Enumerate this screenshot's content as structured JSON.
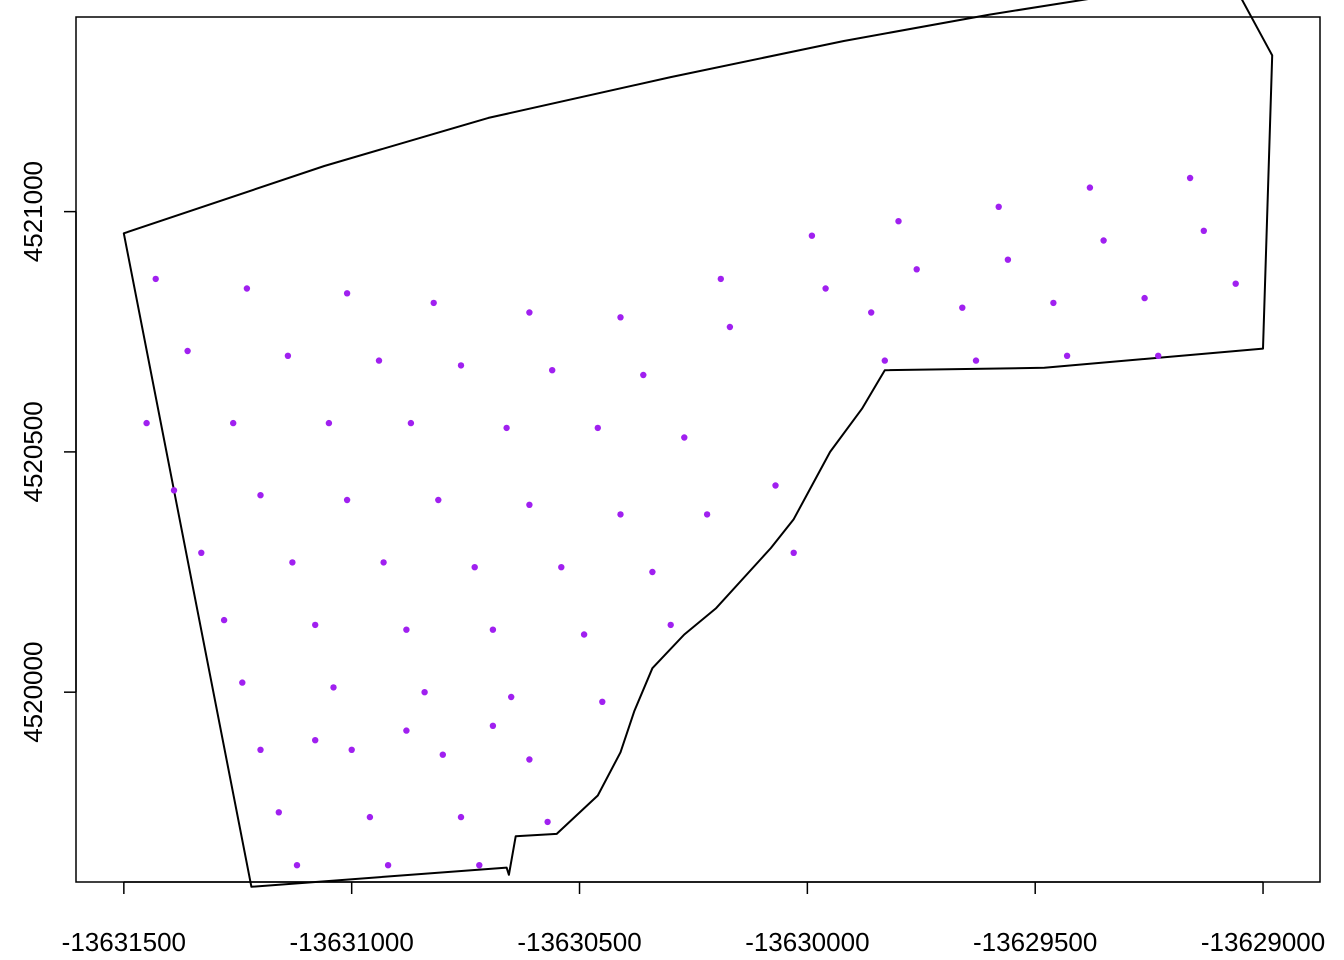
{
  "chart_data": {
    "type": "scatter",
    "title": "",
    "xlabel": "",
    "ylabel": "",
    "xlim": [
      -13631605,
      -13628875
    ],
    "ylim": [
      4519605,
      4521405
    ],
    "grid": false,
    "x_ticks": [
      -13631500,
      -13631000,
      -13630500,
      -13630000,
      -13629500,
      -13629000
    ],
    "x_tick_labels": [
      "-13631500",
      "-13631000",
      "-13630500",
      "-13630000",
      "-13629500",
      "-13629000"
    ],
    "y_ticks": [
      4520000,
      4520500,
      4521000
    ],
    "y_tick_labels": [
      "4520000",
      "4520500",
      "4521000"
    ],
    "boundary": {
      "name": "",
      "color": "#000000",
      "x": [
        -13631500,
        -13631060,
        -13630700,
        -13630300,
        -13629920,
        -13629600,
        -13629300,
        -13629080,
        -13628980,
        -13629000,
        -13629480,
        -13629830,
        -13629880,
        -13629950,
        -13630030,
        -13630080,
        -13630200,
        -13630270,
        -13630340,
        -13630380,
        -13630410,
        -13630460,
        -13630550,
        -13630640,
        -13630655,
        -13630660,
        -13631220,
        -13631500
      ],
      "y": [
        4520955,
        4521095,
        4521195,
        4521280,
        4521355,
        4521410,
        4521455,
        4521500,
        4521325,
        4520715,
        4520675,
        4520670,
        4520590,
        4520500,
        4520360,
        4520300,
        4520175,
        4520120,
        4520050,
        4519960,
        4519875,
        4519785,
        4519705,
        4519700,
        4519620,
        4519635,
        4519595,
        4520955
      ]
    },
    "series": [
      {
        "name": "",
        "color": "#a020f0",
        "x": [
          -13631430,
          -13631230,
          -13631010,
          -13630820,
          -13630610,
          -13630410,
          -13630190,
          -13629990,
          -13629800,
          -13629580,
          -13629380,
          -13629160,
          -13631360,
          -13631140,
          -13630940,
          -13630760,
          -13630560,
          -13630360,
          -13630170,
          -13629960,
          -13629760,
          -13629560,
          -13629350,
          -13629130,
          -13631450,
          -13631260,
          -13631050,
          -13630870,
          -13630660,
          -13630460,
          -13630270,
          -13630070,
          -13629860,
          -13629660,
          -13629460,
          -13629260,
          -13629060,
          -13631390,
          -13631200,
          -13631010,
          -13630810,
          -13630610,
          -13630410,
          -13630220,
          -13630030,
          -13629830,
          -13629630,
          -13629430,
          -13629230,
          -13631330,
          -13631130,
          -13630930,
          -13630730,
          -13630540,
          -13630340,
          -13631280,
          -13631080,
          -13630880,
          -13630690,
          -13630490,
          -13630300,
          -13631240,
          -13631040,
          -13630840,
          -13630650,
          -13630450,
          -13631200,
          -13631000,
          -13630800,
          -13630610,
          -13631160,
          -13630960,
          -13630760,
          -13630570,
          -13631120,
          -13630920,
          -13630720,
          -13631080,
          -13630880,
          -13630690
        ],
        "y": [
          4520860,
          4520840,
          4520830,
          4520810,
          4520790,
          4520780,
          4520860,
          4520950,
          4520980,
          4521010,
          4521050,
          4521070,
          4520710,
          4520700,
          4520690,
          4520680,
          4520670,
          4520660,
          4520760,
          4520840,
          4520880,
          4520900,
          4520940,
          4520960,
          4520560,
          4520560,
          4520560,
          4520560,
          4520550,
          4520550,
          4520530,
          4520430,
          4520790,
          4520800,
          4520810,
          4520820,
          4520850,
          4520420,
          4520410,
          4520400,
          4520400,
          4520390,
          4520370,
          4520370,
          4520290,
          4520690,
          4520690,
          4520700,
          4520700,
          4520290,
          4520270,
          4520270,
          4520260,
          4520260,
          4520250,
          4520150,
          4520140,
          4520130,
          4520130,
          4520120,
          4520140,
          4520020,
          4520010,
          4520000,
          4519990,
          4519980,
          4519880,
          4519880,
          4519870,
          4519860,
          4519750,
          4519740,
          4519740,
          4519730,
          4519640,
          4519640,
          4519640,
          4519900,
          4519920,
          4519930
        ]
      }
    ]
  }
}
